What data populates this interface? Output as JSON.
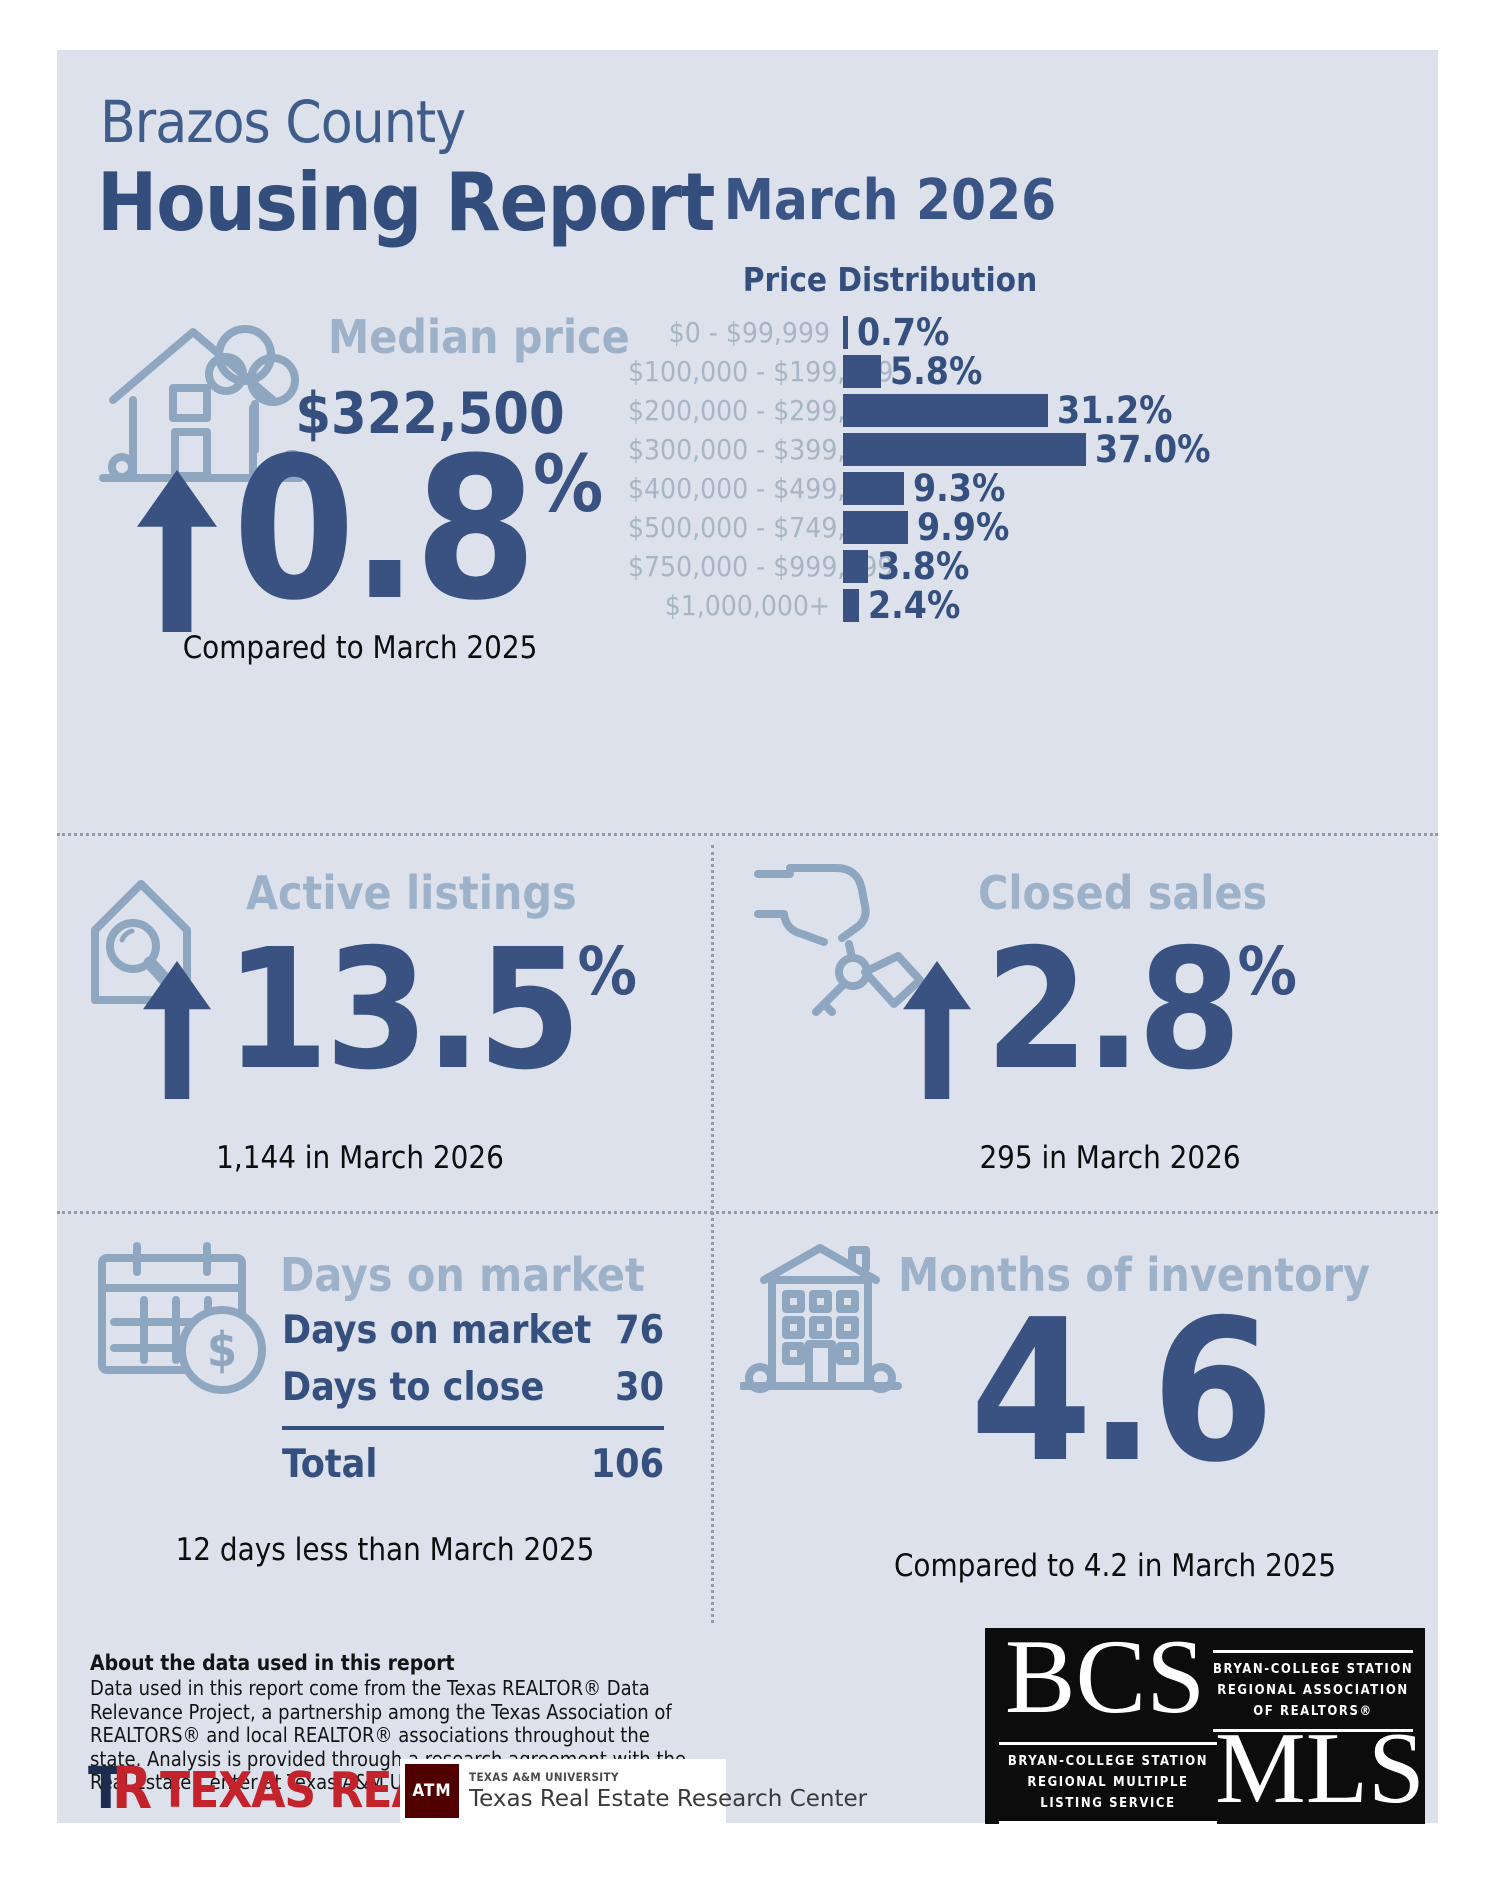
{
  "colors": {
    "panel_bg": "#dce1eb",
    "navy": "#344e7d",
    "stat_navy": "#3a5282",
    "light_blue_label": "#9db1c9",
    "chart_label": "#a7b5c5",
    "bar": "#3a5282",
    "black_text": "#0d0d0d",
    "texas_realtors_red": "#c4232b",
    "tamu_maroon": "#500000",
    "bcs_bg": "#0c0c0c"
  },
  "header": {
    "title_line1": "Brazos County",
    "title_line2": "Housing Report",
    "month": "March 2026"
  },
  "median_price": {
    "label": "Median price",
    "value": "$322,500",
    "change": "0.8",
    "pct": "%",
    "compare": "Compared to March 2025"
  },
  "chart_data": {
    "type": "bar",
    "orientation": "horizontal",
    "title": "Price Distribution",
    "categories": [
      "$0 - $99,999",
      "$100,000 - $199,999",
      "$200,000 - $299,999",
      "$300,000 - $399,999",
      "$400,000 - $499,999",
      "$500,000 - $749,999",
      "$750,000 - $999,999",
      "$1,000,000+"
    ],
    "values": [
      0.7,
      5.8,
      31.2,
      37.0,
      9.3,
      9.9,
      3.8,
      2.4
    ],
    "value_labels": [
      "0.7%",
      "5.8%",
      "31.2%",
      "37.0%",
      "9.3%",
      "9.9%",
      "3.8%",
      "2.4%"
    ],
    "xlim": [
      0,
      40
    ],
    "legend": "none",
    "grid": false,
    "bar_color": "#3a5282"
  },
  "active_listings": {
    "label": "Active listings",
    "change": "13.5",
    "pct": "%",
    "compare": "1,144 in March 2026"
  },
  "closed_sales": {
    "label": "Closed sales",
    "change": "2.8",
    "pct": "%",
    "compare": "295 in March 2026"
  },
  "days_on_market": {
    "label": "Days on market",
    "rows": [
      {
        "label": "Days on market",
        "value": "76"
      },
      {
        "label": "Days to close",
        "value": "30"
      }
    ],
    "total_label": "Total",
    "total_value": "106",
    "compare": "12 days less than March 2025"
  },
  "months_of_inventory": {
    "label": "Months of inventory",
    "value": "4.6",
    "compare": "Compared to 4.2 in March 2025"
  },
  "about": {
    "heading": "About the data used in this report",
    "body": "Data used in this report come from the Texas REALTOR® Data Relevance Project, a partnership among the Texas Association of REALTORS® and local REALTOR® associations throughout the state. Analysis is provided through a research agreement with the Real Estate Center at Texas A&M University."
  },
  "logos": {
    "tr_t": "T",
    "tr_r": "R",
    "texas_realtors": "TEXAS REALTORS",
    "tamu_monogram": "ATM",
    "tamu_university": "TEXAS A&M UNIVERSITY",
    "tamu_center": "Texas Real Estate Research Center",
    "bcs": "BCS",
    "mls": "MLS",
    "association_lines": [
      "BRYAN-COLLEGE STATION",
      "REGIONAL ASSOCIATION",
      "OF REALTORS®"
    ],
    "mls_lines": [
      "BRYAN-COLLEGE STATION",
      "REGIONAL MULTIPLE",
      "LISTING SERVICE"
    ]
  }
}
